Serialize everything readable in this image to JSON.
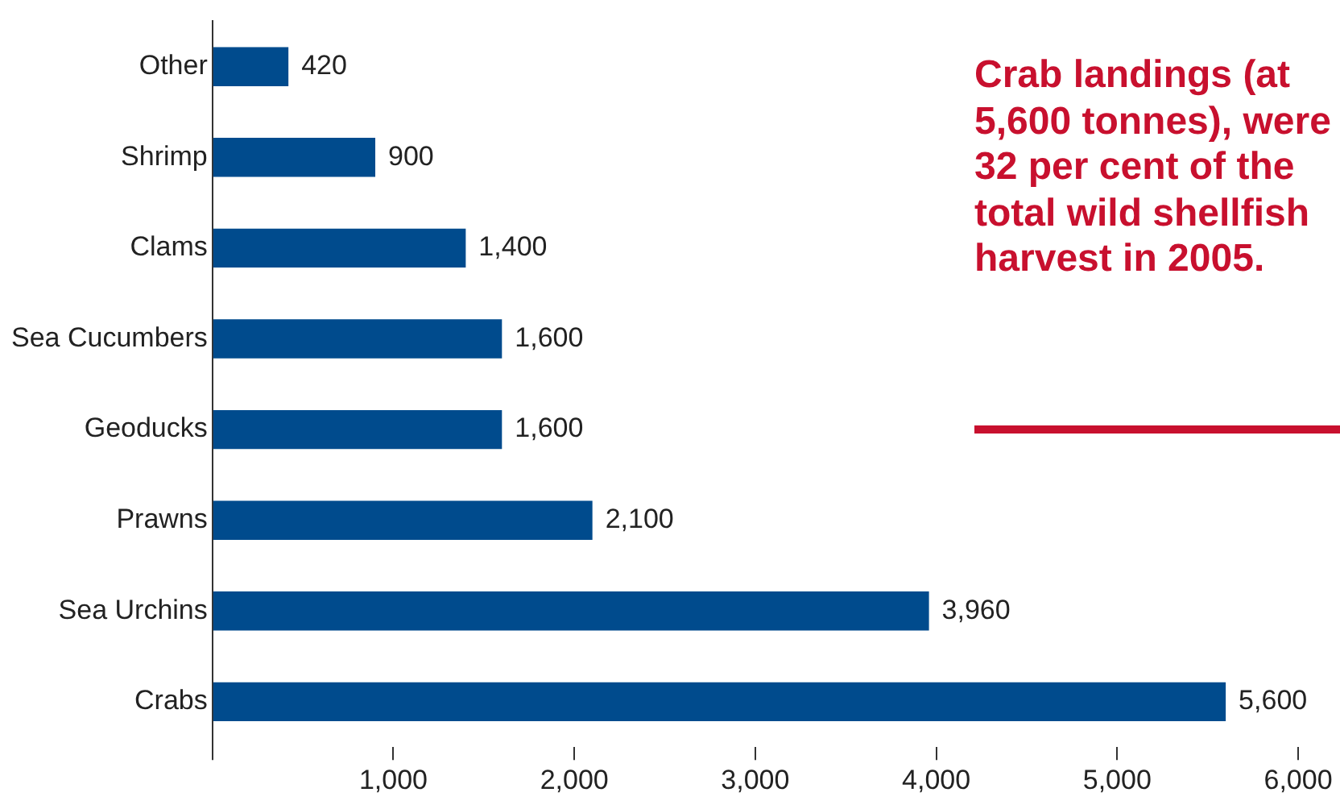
{
  "chart_data": {
    "type": "bar",
    "orientation": "horizontal",
    "categories": [
      "Other",
      "Shrimp",
      "Clams",
      "Sea Cucumbers",
      "Geoducks",
      "Prawns",
      "Sea Urchins",
      "Crabs"
    ],
    "values": [
      420,
      900,
      1400,
      1600,
      1600,
      2100,
      3960,
      5600
    ],
    "color": "#004b8d",
    "xlim": [
      0,
      6000
    ],
    "xticks": [
      {
        "value": 0,
        "label": null
      },
      {
        "value": 1000,
        "label": "1,000"
      },
      {
        "value": 2000,
        "label": "2,000"
      },
      {
        "value": 3000,
        "label": "3,000"
      },
      {
        "value": 4000,
        "label": "4,000"
      },
      {
        "value": 5000,
        "label": "5,000"
      },
      {
        "value": 6000,
        "label": "6,000"
      }
    ],
    "grid": false,
    "legend": false,
    "value_labels": [
      "420",
      "900",
      "1,400",
      "1,600",
      "1,600",
      "2,100",
      "3,960",
      "5,600"
    ],
    "annotations": [
      "Crab landings (at 5,600 tonnes), were 32 per cent of the total wild shellfish harvest in 2005."
    ]
  }
}
